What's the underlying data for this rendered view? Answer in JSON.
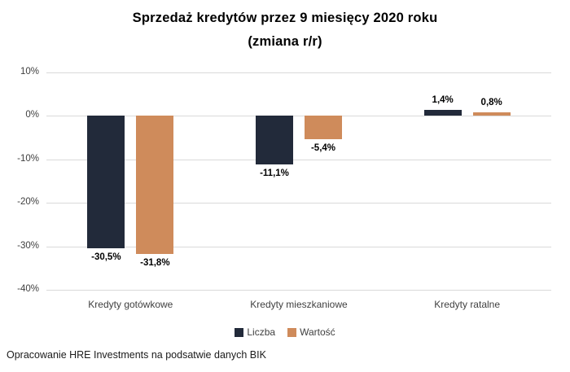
{
  "title": {
    "line1": "Sprzedaż kredytów przez 9 miesięcy 2020 roku",
    "line2": "(zmiana r/r)"
  },
  "footer": "Opracowanie HRE Investments na podsatwie danych BIK",
  "colors": {
    "series_liczba": "#222A3A",
    "series_wartosc": "#CF8B5B",
    "gridline": "#D9D9D9"
  },
  "chart_data": {
    "type": "bar",
    "title": "Sprzedaż kredytów przez 9 miesięcy 2020 roku (zmiana r/r)",
    "categories": [
      "Kredyty gotówkowe",
      "Kredyty mieszkaniowe",
      "Kredyty ratalne"
    ],
    "series": [
      {
        "name": "Liczba",
        "color": "#222A3A",
        "values": [
          -30.5,
          -11.1,
          1.4
        ],
        "labels": [
          "-30,5%",
          "-11,1%",
          "1,4%"
        ]
      },
      {
        "name": "Wartość",
        "color": "#CF8B5B",
        "values": [
          -31.8,
          -5.4,
          0.8
        ],
        "labels": [
          "-31,8%",
          "-5,4%",
          "0,8%"
        ]
      }
    ],
    "y_axis": {
      "ticks": [
        "10%",
        "0%",
        "-10%",
        "-20%",
        "-30%",
        "-40%"
      ],
      "tick_values": [
        10,
        0,
        -10,
        -20,
        -30,
        -40
      ],
      "min": -40,
      "max": 10
    },
    "grid": true,
    "legend_position": "bottom",
    "xlabel": "",
    "ylabel": ""
  }
}
